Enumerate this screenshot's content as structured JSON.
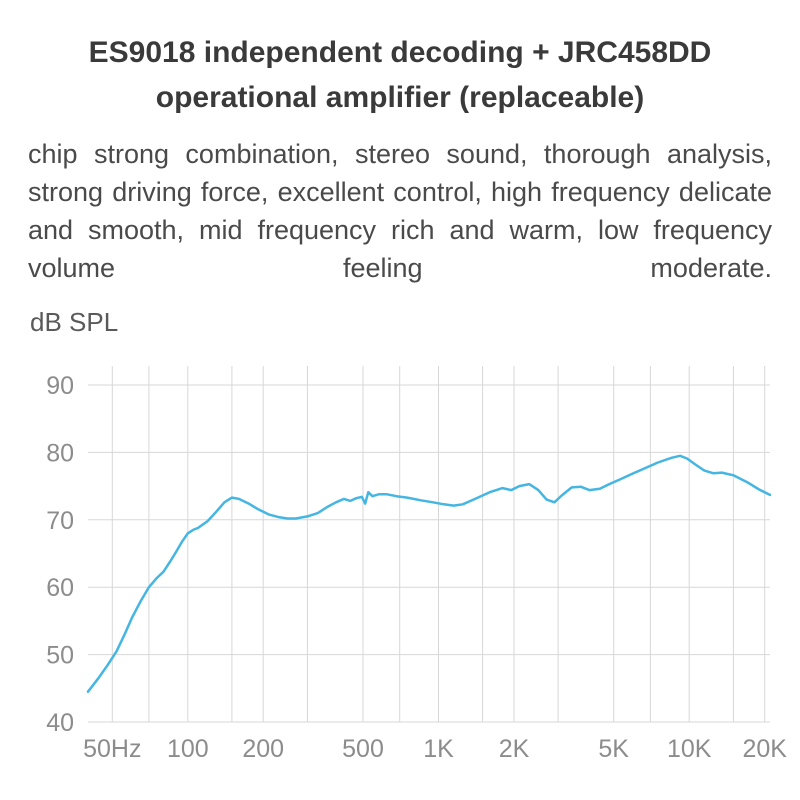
{
  "page": {
    "title_line1": "ES9018 independent decoding + JRC458DD",
    "title_line2": "operational amplifier (replaceable)",
    "description": "chip strong combination, stereo sound, thorough analysis, strong driving force, excellent control, high frequency delicate and smooth, mid frequency rich and warm, low frequency volume feeling moderate."
  },
  "chart_data": {
    "type": "line",
    "title": "",
    "xlabel": "",
    "ylabel": "dB SPL",
    "x_scale": "log",
    "x_domain": [
      40,
      21000
    ],
    "ylim": [
      40,
      90
    ],
    "y_ticks": [
      40,
      50,
      60,
      70,
      80,
      90
    ],
    "x_ticks": [
      {
        "f": 50,
        "label": "50Hz"
      },
      {
        "f": 100,
        "label": "100"
      },
      {
        "f": 200,
        "label": "200"
      },
      {
        "f": 500,
        "label": "500"
      },
      {
        "f": 1000,
        "label": "1K"
      },
      {
        "f": 2000,
        "label": "2K"
      },
      {
        "f": 5000,
        "label": "5K"
      },
      {
        "f": 10000,
        "label": "10K"
      },
      {
        "f": 20000,
        "label": "20K"
      }
    ],
    "x_gridlines": [
      50,
      70,
      100,
      150,
      200,
      300,
      500,
      700,
      1000,
      1500,
      2000,
      3000,
      5000,
      7000,
      10000,
      15000,
      20000
    ],
    "grid_on": true,
    "legend": "none",
    "grid_color": "#d7d7d7",
    "tick_color": "#8c8c8c",
    "line_color": "#45b6e2",
    "series": [
      {
        "name": "frequency-response",
        "points": [
          [
            40,
            44.5
          ],
          [
            44,
            46.5
          ],
          [
            48,
            48.5
          ],
          [
            52,
            50.5
          ],
          [
            56,
            53
          ],
          [
            60,
            55.5
          ],
          [
            65,
            58
          ],
          [
            70,
            60
          ],
          [
            75,
            61.3
          ],
          [
            80,
            62.3
          ],
          [
            85,
            63.8
          ],
          [
            90,
            65.3
          ],
          [
            95,
            66.8
          ],
          [
            100,
            68
          ],
          [
            105,
            68.5
          ],
          [
            110,
            68.8
          ],
          [
            120,
            69.8
          ],
          [
            130,
            71.2
          ],
          [
            140,
            72.6
          ],
          [
            150,
            73.3
          ],
          [
            160,
            73.1
          ],
          [
            175,
            72.4
          ],
          [
            190,
            71.6
          ],
          [
            210,
            70.8
          ],
          [
            230,
            70.4
          ],
          [
            250,
            70.2
          ],
          [
            270,
            70.2
          ],
          [
            300,
            70.5
          ],
          [
            330,
            71
          ],
          [
            360,
            71.9
          ],
          [
            390,
            72.6
          ],
          [
            420,
            73.1
          ],
          [
            445,
            72.8
          ],
          [
            470,
            73.2
          ],
          [
            495,
            73.4
          ],
          [
            510,
            72.4
          ],
          [
            525,
            74.1
          ],
          [
            545,
            73.5
          ],
          [
            580,
            73.8
          ],
          [
            620,
            73.8
          ],
          [
            680,
            73.5
          ],
          [
            750,
            73.3
          ],
          [
            850,
            72.9
          ],
          [
            950,
            72.6
          ],
          [
            1050,
            72.3
          ],
          [
            1150,
            72.1
          ],
          [
            1250,
            72.3
          ],
          [
            1400,
            73.1
          ],
          [
            1600,
            74.1
          ],
          [
            1800,
            74.7
          ],
          [
            1950,
            74.4
          ],
          [
            2100,
            75.0
          ],
          [
            2300,
            75.3
          ],
          [
            2500,
            74.4
          ],
          [
            2700,
            73.0
          ],
          [
            2900,
            72.6
          ],
          [
            3100,
            73.6
          ],
          [
            3400,
            74.8
          ],
          [
            3700,
            74.9
          ],
          [
            4000,
            74.4
          ],
          [
            4400,
            74.6
          ],
          [
            4800,
            75.3
          ],
          [
            5300,
            76.0
          ],
          [
            5900,
            76.8
          ],
          [
            6600,
            77.6
          ],
          [
            7500,
            78.5
          ],
          [
            8500,
            79.2
          ],
          [
            9200,
            79.5
          ],
          [
            9800,
            79.1
          ],
          [
            10500,
            78.3
          ],
          [
            11500,
            77.3
          ],
          [
            12500,
            76.9
          ],
          [
            13500,
            77.0
          ],
          [
            15000,
            76.6
          ],
          [
            17000,
            75.6
          ],
          [
            19000,
            74.5
          ],
          [
            21000,
            73.7
          ]
        ]
      }
    ]
  }
}
